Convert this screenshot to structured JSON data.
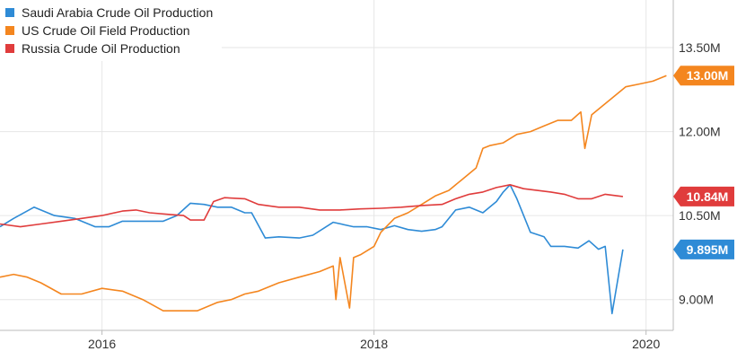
{
  "chart_data": {
    "type": "line",
    "legend_placement": "top-left",
    "grid": true,
    "xlim": [
      2015.25,
      2020.2
    ],
    "ylim": [
      8.45,
      14.35
    ],
    "x_ticks": [
      {
        "value": 2016,
        "label": "2016"
      },
      {
        "value": 2018,
        "label": "2018"
      },
      {
        "value": 2020,
        "label": "2020"
      }
    ],
    "y_ticks": [
      {
        "value": 9.0,
        "label": "9.00M"
      },
      {
        "value": 10.5,
        "label": "10.50M"
      },
      {
        "value": 12.0,
        "label": "12.00M"
      },
      {
        "value": 13.5,
        "label": "13.50M"
      }
    ],
    "series": [
      {
        "name": "Saudi Arabia Crude Oil Production",
        "color": "#2e8bd6",
        "last_label": "9.895M",
        "last_value": 9.895,
        "x": [
          2015.25,
          2015.35,
          2015.5,
          2015.65,
          2015.8,
          2015.95,
          2016.05,
          2016.15,
          2016.3,
          2016.45,
          2016.55,
          2016.65,
          2016.75,
          2016.85,
          2016.95,
          2017.05,
          2017.1,
          2017.2,
          2017.3,
          2017.45,
          2017.55,
          2017.7,
          2017.85,
          2017.95,
          2018.05,
          2018.15,
          2018.25,
          2018.35,
          2018.45,
          2018.5,
          2018.6,
          2018.7,
          2018.8,
          2018.9,
          2018.95,
          2019.0,
          2019.05,
          2019.15,
          2019.25,
          2019.3,
          2019.4,
          2019.5,
          2019.58,
          2019.65,
          2019.7,
          2019.75,
          2019.83
        ],
        "values": [
          10.3,
          10.45,
          10.65,
          10.5,
          10.45,
          10.3,
          10.3,
          10.4,
          10.4,
          10.4,
          10.5,
          10.72,
          10.7,
          10.65,
          10.65,
          10.55,
          10.55,
          10.1,
          10.12,
          10.1,
          10.15,
          10.38,
          10.3,
          10.3,
          10.25,
          10.32,
          10.25,
          10.22,
          10.25,
          10.3,
          10.6,
          10.65,
          10.55,
          10.75,
          10.92,
          11.05,
          10.8,
          10.2,
          10.12,
          9.95,
          9.95,
          9.92,
          10.05,
          9.9,
          9.95,
          8.75,
          9.895
        ]
      },
      {
        "name": "US Crude Oil Field Production",
        "color": "#f4861f",
        "last_label": "13.00M",
        "last_value": 13.0,
        "x": [
          2015.25,
          2015.35,
          2015.45,
          2015.55,
          2015.7,
          2015.85,
          2016.0,
          2016.15,
          2016.3,
          2016.45,
          2016.55,
          2016.7,
          2016.85,
          2016.95,
          2017.05,
          2017.15,
          2017.3,
          2017.45,
          2017.6,
          2017.7,
          2017.72,
          2017.75,
          2017.82,
          2017.85,
          2017.9,
          2018.0,
          2018.05,
          2018.15,
          2018.25,
          2018.35,
          2018.45,
          2018.55,
          2018.65,
          2018.75,
          2018.8,
          2018.85,
          2018.95,
          2019.05,
          2019.15,
          2019.25,
          2019.35,
          2019.45,
          2019.52,
          2019.55,
          2019.6,
          2019.65,
          2019.75,
          2019.85,
          2019.95,
          2020.05,
          2020.15
        ],
        "values": [
          9.4,
          9.45,
          9.4,
          9.3,
          9.1,
          9.1,
          9.2,
          9.15,
          9.0,
          8.8,
          8.8,
          8.8,
          8.95,
          9.0,
          9.1,
          9.15,
          9.3,
          9.4,
          9.5,
          9.6,
          9.0,
          9.75,
          8.85,
          9.75,
          9.8,
          9.95,
          10.2,
          10.45,
          10.55,
          10.7,
          10.85,
          10.95,
          11.15,
          11.35,
          11.7,
          11.75,
          11.8,
          11.95,
          12.0,
          12.1,
          12.2,
          12.2,
          12.35,
          11.7,
          12.3,
          12.4,
          12.6,
          12.8,
          12.85,
          12.9,
          13.0
        ]
      },
      {
        "name": "Russia Crude Oil Production",
        "color": "#e03c3c",
        "last_label": "10.84M",
        "last_value": 10.84,
        "x": [
          2015.25,
          2015.4,
          2015.55,
          2015.7,
          2015.85,
          2016.0,
          2016.15,
          2016.25,
          2016.35,
          2016.5,
          2016.6,
          2016.65,
          2016.75,
          2016.82,
          2016.9,
          2017.05,
          2017.15,
          2017.3,
          2017.45,
          2017.6,
          2017.75,
          2017.9,
          2018.05,
          2018.2,
          2018.35,
          2018.5,
          2018.6,
          2018.7,
          2018.8,
          2018.9,
          2019.0,
          2019.1,
          2019.2,
          2019.3,
          2019.4,
          2019.5,
          2019.6,
          2019.7,
          2019.83
        ],
        "values": [
          10.35,
          10.3,
          10.35,
          10.4,
          10.45,
          10.5,
          10.58,
          10.6,
          10.55,
          10.52,
          10.5,
          10.42,
          10.42,
          10.75,
          10.82,
          10.8,
          10.7,
          10.65,
          10.65,
          10.6,
          10.6,
          10.62,
          10.63,
          10.65,
          10.68,
          10.7,
          10.8,
          10.88,
          10.92,
          11.0,
          11.05,
          10.98,
          10.95,
          10.92,
          10.88,
          10.8,
          10.8,
          10.88,
          10.84
        ]
      }
    ]
  }
}
